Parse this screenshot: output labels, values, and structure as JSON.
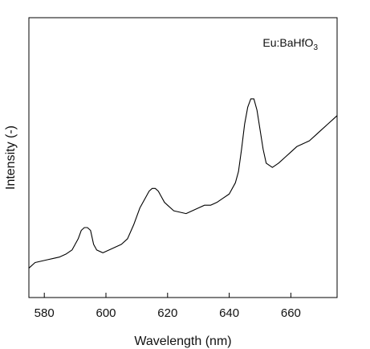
{
  "chart_data": {
    "type": "line",
    "title": "",
    "xlabel": "Wavelength (nm)",
    "ylabel": "Intensity (-)",
    "annotation": {
      "base": "Eu:BaHfO",
      "subscript": "3"
    },
    "xlim": [
      575,
      675
    ],
    "ylim": [
      0,
      1
    ],
    "xticks": [
      580,
      600,
      620,
      640,
      660
    ],
    "yticks_shown": false,
    "grid": false,
    "legend": "none",
    "line_color": "#000000",
    "series": [
      {
        "x": [
          575,
          577,
          579,
          581,
          583,
          585,
          587,
          589,
          591,
          592,
          593,
          594,
          595,
          596,
          597,
          599,
          601,
          603,
          605,
          607,
          609,
          611,
          613,
          614,
          615,
          616,
          617,
          618,
          619,
          620,
          622,
          624,
          626,
          628,
          630,
          632,
          634,
          636,
          638,
          640,
          642,
          643,
          644,
          645,
          646,
          647,
          648,
          649,
          650,
          651,
          652,
          654,
          656,
          658,
          660,
          662,
          664,
          666,
          668,
          670,
          672,
          674,
          675
        ],
        "y": [
          0.105,
          0.125,
          0.13,
          0.135,
          0.14,
          0.145,
          0.155,
          0.17,
          0.21,
          0.24,
          0.25,
          0.25,
          0.24,
          0.19,
          0.17,
          0.16,
          0.17,
          0.18,
          0.19,
          0.21,
          0.26,
          0.32,
          0.36,
          0.38,
          0.39,
          0.39,
          0.38,
          0.36,
          0.34,
          0.33,
          0.31,
          0.305,
          0.3,
          0.31,
          0.32,
          0.33,
          0.33,
          0.34,
          0.355,
          0.37,
          0.41,
          0.45,
          0.53,
          0.62,
          0.68,
          0.71,
          0.71,
          0.67,
          0.6,
          0.53,
          0.48,
          0.465,
          0.48,
          0.5,
          0.52,
          0.54,
          0.55,
          0.56,
          0.58,
          0.6,
          0.62,
          0.64,
          0.65
        ]
      }
    ]
  }
}
